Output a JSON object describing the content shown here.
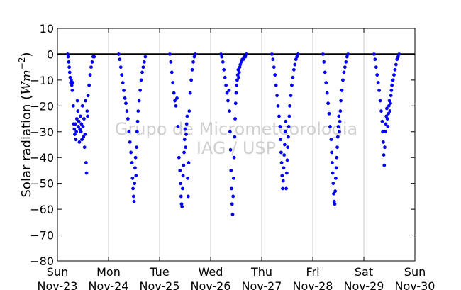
{
  "chart_data": {
    "type": "scatter",
    "title": "",
    "ylabel_prefix": "Solar radiation (",
    "ylabel_math": "Wm",
    "ylabel_exp": "−2",
    "ylabel_suffix": ")",
    "ylim": [
      -80,
      10
    ],
    "yticks": [
      10,
      0,
      -10,
      -20,
      -30,
      -40,
      -50,
      -60,
      -70,
      -80
    ],
    "ytick_labels": [
      "10",
      "0",
      "−10",
      "−20",
      "−30",
      "−40",
      "−50",
      "−60",
      "−70",
      "−80"
    ],
    "xlim": [
      0,
      7
    ],
    "xticks": [
      {
        "day": "Sun",
        "date": "Nov-23"
      },
      {
        "day": "Mon",
        "date": "Nov-24"
      },
      {
        "day": "Tue",
        "date": "Nov-25"
      },
      {
        "day": "Wed",
        "date": "Nov-26"
      },
      {
        "day": "Thu",
        "date": "Nov-27"
      },
      {
        "day": "Fri",
        "date": "Nov-28"
      },
      {
        "day": "Sat",
        "date": "Nov-29"
      },
      {
        "day": "Sun",
        "date": "Nov-30"
      }
    ],
    "grid": "vertical",
    "zero_line": 0,
    "marker_color": "#0000ff",
    "watermark": [
      "Grupo de Micrometeorologia",
      "IAG / USP"
    ],
    "series": [
      {
        "values": [
          {
            "x": 0.2,
            "y": 0
          },
          {
            "x": 0.21,
            "y": -1
          },
          {
            "x": 0.22,
            "y": -3
          },
          {
            "x": 0.23,
            "y": -5
          },
          {
            "x": 0.24,
            "y": -7
          },
          {
            "x": 0.25,
            "y": -9
          },
          {
            "x": 0.26,
            "y": -11
          },
          {
            "x": 0.27,
            "y": -10
          },
          {
            "x": 0.28,
            "y": -12
          },
          {
            "x": 0.29,
            "y": -14
          },
          {
            "x": 0.3,
            "y": -11
          },
          {
            "x": 0.31,
            "y": -20
          },
          {
            "x": 0.32,
            "y": -27
          },
          {
            "x": 0.33,
            "y": -29
          },
          {
            "x": 0.34,
            "y": -31
          },
          {
            "x": 0.35,
            "y": -27
          },
          {
            "x": 0.36,
            "y": -33
          },
          {
            "x": 0.37,
            "y": -30
          },
          {
            "x": 0.38,
            "y": -25
          },
          {
            "x": 0.39,
            "y": -18
          },
          {
            "x": 0.4,
            "y": -22
          },
          {
            "x": 0.41,
            "y": -28
          },
          {
            "x": 0.42,
            "y": -26
          },
          {
            "x": 0.43,
            "y": -34
          },
          {
            "x": 0.44,
            "y": -29
          },
          {
            "x": 0.45,
            "y": -24
          },
          {
            "x": 0.46,
            "y": -30
          },
          {
            "x": 0.47,
            "y": -27
          },
          {
            "x": 0.48,
            "y": -33
          },
          {
            "x": 0.49,
            "y": -20
          },
          {
            "x": 0.5,
            "y": -28
          },
          {
            "x": 0.51,
            "y": -32
          },
          {
            "x": 0.52,
            "y": -25
          },
          {
            "x": 0.53,
            "y": -36
          },
          {
            "x": 0.54,
            "y": -31
          },
          {
            "x": 0.55,
            "y": -18
          },
          {
            "x": 0.56,
            "y": -42
          },
          {
            "x": 0.57,
            "y": -46
          },
          {
            "x": 0.58,
            "y": -22
          },
          {
            "x": 0.59,
            "y": -24
          },
          {
            "x": 0.6,
            "y": -16
          },
          {
            "x": 0.62,
            "y": -12
          },
          {
            "x": 0.64,
            "y": -8
          },
          {
            "x": 0.66,
            "y": -5
          },
          {
            "x": 0.68,
            "y": -3
          },
          {
            "x": 0.7,
            "y": -1
          },
          {
            "x": 0.72,
            "y": -1
          },
          {
            "x": 1.2,
            "y": 0
          },
          {
            "x": 1.22,
            "y": -2
          },
          {
            "x": 1.24,
            "y": -5
          },
          {
            "x": 1.26,
            "y": -8
          },
          {
            "x": 1.28,
            "y": -11
          },
          {
            "x": 1.3,
            "y": -14
          },
          {
            "x": 1.32,
            "y": -17
          },
          {
            "x": 1.34,
            "y": -19
          },
          {
            "x": 1.36,
            "y": -22
          },
          {
            "x": 1.38,
            "y": -25
          },
          {
            "x": 1.4,
            "y": -30
          },
          {
            "x": 1.42,
            "y": -34
          },
          {
            "x": 1.44,
            "y": -38
          },
          {
            "x": 1.46,
            "y": -42
          },
          {
            "x": 1.47,
            "y": -48
          },
          {
            "x": 1.48,
            "y": -52
          },
          {
            "x": 1.49,
            "y": -55
          },
          {
            "x": 1.5,
            "y": -57
          },
          {
            "x": 1.51,
            "y": -50
          },
          {
            "x": 1.52,
            "y": -44
          },
          {
            "x": 1.53,
            "y": -40
          },
          {
            "x": 1.54,
            "y": -47
          },
          {
            "x": 1.55,
            "y": -36
          },
          {
            "x": 1.56,
            "y": -30
          },
          {
            "x": 1.57,
            "y": -26
          },
          {
            "x": 1.58,
            "y": -22
          },
          {
            "x": 1.6,
            "y": -18
          },
          {
            "x": 1.62,
            "y": -14
          },
          {
            "x": 1.64,
            "y": -10
          },
          {
            "x": 1.66,
            "y": -7
          },
          {
            "x": 1.68,
            "y": -5
          },
          {
            "x": 1.7,
            "y": -3
          },
          {
            "x": 1.72,
            "y": -1
          },
          {
            "x": 2.2,
            "y": 0
          },
          {
            "x": 2.22,
            "y": -3
          },
          {
            "x": 2.24,
            "y": -7
          },
          {
            "x": 2.26,
            "y": -11
          },
          {
            "x": 2.28,
            "y": -15
          },
          {
            "x": 2.3,
            "y": -18
          },
          {
            "x": 2.32,
            "y": -20
          },
          {
            "x": 2.34,
            "y": -17
          },
          {
            "x": 2.36,
            "y": -28
          },
          {
            "x": 2.38,
            "y": -40
          },
          {
            "x": 2.4,
            "y": -45
          },
          {
            "x": 2.41,
            "y": -50
          },
          {
            "x": 2.42,
            "y": -55
          },
          {
            "x": 2.43,
            "y": -58
          },
          {
            "x": 2.44,
            "y": -59
          },
          {
            "x": 2.45,
            "y": -52
          },
          {
            "x": 2.46,
            "y": -47
          },
          {
            "x": 2.47,
            "y": -43
          },
          {
            "x": 2.48,
            "y": -38
          },
          {
            "x": 2.49,
            "y": -33
          },
          {
            "x": 2.5,
            "y": -29
          },
          {
            "x": 2.51,
            "y": -36
          },
          {
            "x": 2.52,
            "y": -31
          },
          {
            "x": 2.53,
            "y": -27
          },
          {
            "x": 2.54,
            "y": -24
          },
          {
            "x": 2.55,
            "y": -48
          },
          {
            "x": 2.56,
            "y": -55
          },
          {
            "x": 2.57,
            "y": -42
          },
          {
            "x": 2.58,
            "y": -22
          },
          {
            "x": 2.6,
            "y": -15
          },
          {
            "x": 2.62,
            "y": -10
          },
          {
            "x": 2.64,
            "y": -6
          },
          {
            "x": 2.66,
            "y": -3
          },
          {
            "x": 2.68,
            "y": -1
          },
          {
            "x": 2.7,
            "y": 0
          },
          {
            "x": 3.2,
            "y": 0
          },
          {
            "x": 3.22,
            "y": -1
          },
          {
            "x": 3.24,
            "y": -3
          },
          {
            "x": 3.26,
            "y": -6
          },
          {
            "x": 3.28,
            "y": -9
          },
          {
            "x": 3.3,
            "y": -12
          },
          {
            "x": 3.32,
            "y": -15
          },
          {
            "x": 3.34,
            "y": -18
          },
          {
            "x": 3.36,
            "y": -14
          },
          {
            "x": 3.37,
            "y": -22
          },
          {
            "x": 3.38,
            "y": -30
          },
          {
            "x": 3.39,
            "y": -37
          },
          {
            "x": 3.4,
            "y": -45
          },
          {
            "x": 3.41,
            "y": -52
          },
          {
            "x": 3.42,
            "y": -58
          },
          {
            "x": 3.43,
            "y": -62
          },
          {
            "x": 3.44,
            "y": -55
          },
          {
            "x": 3.45,
            "y": -48
          },
          {
            "x": 3.46,
            "y": -40
          },
          {
            "x": 3.47,
            "y": -32
          },
          {
            "x": 3.48,
            "y": -25
          },
          {
            "x": 3.49,
            "y": -19
          },
          {
            "x": 3.5,
            "y": -15
          },
          {
            "x": 3.51,
            "y": -12
          },
          {
            "x": 3.52,
            "y": -10
          },
          {
            "x": 3.53,
            "y": -8
          },
          {
            "x": 3.54,
            "y": -6
          },
          {
            "x": 3.55,
            "y": -9
          },
          {
            "x": 3.56,
            "y": -7
          },
          {
            "x": 3.57,
            "y": -5
          },
          {
            "x": 3.58,
            "y": -4
          },
          {
            "x": 3.6,
            "y": -3
          },
          {
            "x": 3.62,
            "y": -2
          },
          {
            "x": 3.64,
            "y": -2
          },
          {
            "x": 3.66,
            "y": -1
          },
          {
            "x": 3.68,
            "y": -1
          },
          {
            "x": 3.7,
            "y": 0
          },
          {
            "x": 4.2,
            "y": 0
          },
          {
            "x": 4.22,
            "y": -2
          },
          {
            "x": 4.24,
            "y": -5
          },
          {
            "x": 4.26,
            "y": -8
          },
          {
            "x": 4.28,
            "y": -12
          },
          {
            "x": 4.3,
            "y": -16
          },
          {
            "x": 4.32,
            "y": -20
          },
          {
            "x": 4.34,
            "y": -24
          },
          {
            "x": 4.36,
            "y": -28
          },
          {
            "x": 4.37,
            "y": -33
          },
          {
            "x": 4.38,
            "y": -38
          },
          {
            "x": 4.39,
            "y": -42
          },
          {
            "x": 4.4,
            "y": -47
          },
          {
            "x": 4.41,
            "y": -52
          },
          {
            "x": 4.42,
            "y": -49
          },
          {
            "x": 4.43,
            "y": -44
          },
          {
            "x": 4.44,
            "y": -39
          },
          {
            "x": 4.45,
            "y": -35
          },
          {
            "x": 4.46,
            "y": -30
          },
          {
            "x": 4.47,
            "y": -26
          },
          {
            "x": 4.48,
            "y": -52
          },
          {
            "x": 4.49,
            "y": -46
          },
          {
            "x": 4.5,
            "y": -41
          },
          {
            "x": 4.51,
            "y": -36
          },
          {
            "x": 4.52,
            "y": -32
          },
          {
            "x": 4.53,
            "y": -28
          },
          {
            "x": 4.54,
            "y": -24
          },
          {
            "x": 4.55,
            "y": -20
          },
          {
            "x": 4.57,
            "y": -16
          },
          {
            "x": 4.59,
            "y": -12
          },
          {
            "x": 4.61,
            "y": -9
          },
          {
            "x": 4.63,
            "y": -6
          },
          {
            "x": 4.65,
            "y": -4
          },
          {
            "x": 4.67,
            "y": -2
          },
          {
            "x": 4.69,
            "y": -1
          },
          {
            "x": 4.71,
            "y": 0
          },
          {
            "x": 5.2,
            "y": 0
          },
          {
            "x": 5.22,
            "y": -3
          },
          {
            "x": 5.24,
            "y": -7
          },
          {
            "x": 5.26,
            "y": -11
          },
          {
            "x": 5.28,
            "y": -15
          },
          {
            "x": 5.3,
            "y": -19
          },
          {
            "x": 5.32,
            "y": -23
          },
          {
            "x": 5.34,
            "y": -28
          },
          {
            "x": 5.36,
            "y": -33
          },
          {
            "x": 5.37,
            "y": -38
          },
          {
            "x": 5.38,
            "y": -42
          },
          {
            "x": 5.39,
            "y": -46
          },
          {
            "x": 5.4,
            "y": -50
          },
          {
            "x": 5.41,
            "y": -54
          },
          {
            "x": 5.42,
            "y": -57
          },
          {
            "x": 5.43,
            "y": -58
          },
          {
            "x": 5.44,
            "y": -53
          },
          {
            "x": 5.45,
            "y": -48
          },
          {
            "x": 5.46,
            "y": -44
          },
          {
            "x": 5.47,
            "y": -40
          },
          {
            "x": 5.48,
            "y": -36
          },
          {
            "x": 5.49,
            "y": -32
          },
          {
            "x": 5.5,
            "y": -28
          },
          {
            "x": 5.51,
            "y": -24
          },
          {
            "x": 5.52,
            "y": -30
          },
          {
            "x": 5.53,
            "y": -26
          },
          {
            "x": 5.54,
            "y": -22
          },
          {
            "x": 5.55,
            "y": -18
          },
          {
            "x": 5.57,
            "y": -14
          },
          {
            "x": 5.59,
            "y": -10
          },
          {
            "x": 5.61,
            "y": -7
          },
          {
            "x": 5.63,
            "y": -5
          },
          {
            "x": 5.65,
            "y": -3
          },
          {
            "x": 5.67,
            "y": -1
          },
          {
            "x": 5.69,
            "y": 0
          },
          {
            "x": 6.2,
            "y": 0
          },
          {
            "x": 6.22,
            "y": -2
          },
          {
            "x": 6.24,
            "y": -5
          },
          {
            "x": 6.26,
            "y": -8
          },
          {
            "x": 6.28,
            "y": -11
          },
          {
            "x": 6.3,
            "y": -14
          },
          {
            "x": 6.32,
            "y": -18
          },
          {
            "x": 6.34,
            "y": -22
          },
          {
            "x": 6.36,
            "y": -26
          },
          {
            "x": 6.37,
            "y": -30
          },
          {
            "x": 6.38,
            "y": -34
          },
          {
            "x": 6.39,
            "y": -39
          },
          {
            "x": 6.4,
            "y": -43
          },
          {
            "x": 6.41,
            "y": -36
          },
          {
            "x": 6.42,
            "y": -30
          },
          {
            "x": 6.43,
            "y": -27
          },
          {
            "x": 6.44,
            "y": -24
          },
          {
            "x": 6.45,
            "y": -21
          },
          {
            "x": 6.46,
            "y": -25
          },
          {
            "x": 6.47,
            "y": -28
          },
          {
            "x": 6.48,
            "y": -23
          },
          {
            "x": 6.49,
            "y": -20
          },
          {
            "x": 6.5,
            "y": -18
          },
          {
            "x": 6.51,
            "y": -22
          },
          {
            "x": 6.52,
            "y": -19
          },
          {
            "x": 6.53,
            "y": -16
          },
          {
            "x": 6.54,
            "y": -14
          },
          {
            "x": 6.55,
            "y": -12
          },
          {
            "x": 6.57,
            "y": -10
          },
          {
            "x": 6.59,
            "y": -8
          },
          {
            "x": 6.61,
            "y": -6
          },
          {
            "x": 6.63,
            "y": -4
          },
          {
            "x": 6.65,
            "y": -2
          },
          {
            "x": 6.67,
            "y": -1
          },
          {
            "x": 6.69,
            "y": 0
          }
        ]
      }
    ]
  }
}
